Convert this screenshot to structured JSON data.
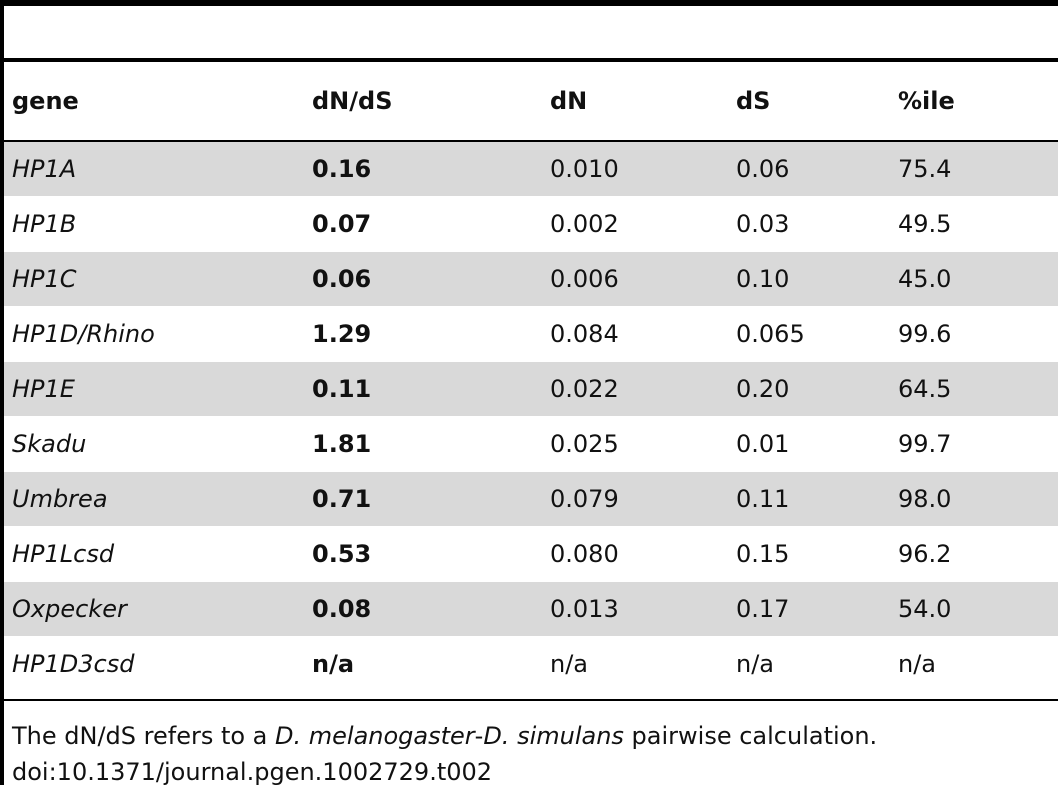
{
  "table": {
    "columns": [
      "gene",
      "dN/dS",
      "dN",
      "dS",
      "%ile"
    ],
    "rows": [
      {
        "gene": "HP1A",
        "dn_ds": "0.16",
        "dn": "0.010",
        "ds": "0.06",
        "pctile": "75.4"
      },
      {
        "gene": "HP1B",
        "dn_ds": "0.07",
        "dn": "0.002",
        "ds": "0.03",
        "pctile": "49.5"
      },
      {
        "gene": "HP1C",
        "dn_ds": "0.06",
        "dn": "0.006",
        "ds": "0.10",
        "pctile": "45.0"
      },
      {
        "gene": "HP1D/Rhino",
        "dn_ds": "1.29",
        "dn": "0.084",
        "ds": "0.065",
        "pctile": "99.6"
      },
      {
        "gene": "HP1E",
        "dn_ds": "0.11",
        "dn": "0.022",
        "ds": "0.20",
        "pctile": "64.5"
      },
      {
        "gene": "Skadu",
        "dn_ds": "1.81",
        "dn": "0.025",
        "ds": "0.01",
        "pctile": "99.7"
      },
      {
        "gene": "Umbrea",
        "dn_ds": "0.71",
        "dn": "0.079",
        "ds": "0.11",
        "pctile": "98.0"
      },
      {
        "gene": "HP1Lcsd",
        "dn_ds": "0.53",
        "dn": "0.080",
        "ds": "0.15",
        "pctile": "96.2"
      },
      {
        "gene": "Oxpecker",
        "dn_ds": "0.08",
        "dn": "0.013",
        "ds": "0.17",
        "pctile": "54.0"
      },
      {
        "gene": "HP1D3csd",
        "dn_ds": "n/a",
        "dn": "n/a",
        "ds": "n/a",
        "pctile": "n/a"
      }
    ],
    "shaded_row_color": "#d9d9d9"
  },
  "footnote": {
    "prefix": "The dN/dS refers to a ",
    "species_1": "D. melanogaster",
    "separator": "-",
    "species_2": "D. simulans",
    "suffix": " pairwise calculation.",
    "doi": "doi:10.1371/journal.pgen.1002729.t002"
  }
}
